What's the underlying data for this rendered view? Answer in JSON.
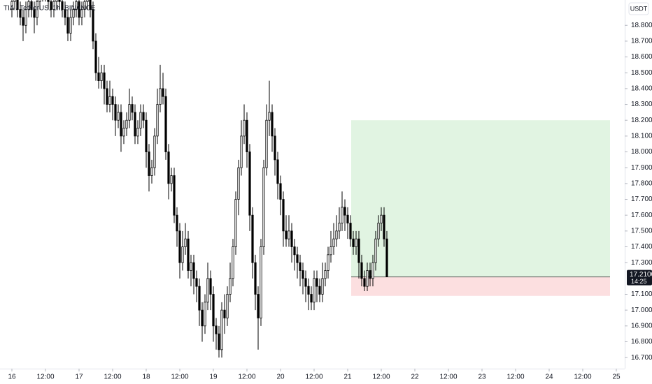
{
  "chart_data": {
    "type": "candlestick",
    "title": "TIA / TetherUS, 1h, BINANCE",
    "currency": "USDT",
    "open": [
      18.9,
      18.95,
      19.0,
      18.9,
      18.85,
      18.8,
      18.9,
      18.95,
      18.9,
      18.85,
      18.95,
      19.0,
      19.05,
      19.0,
      18.95,
      18.9,
      18.95,
      19.0,
      18.95,
      18.9,
      18.85,
      18.75,
      18.85,
      18.9,
      18.95,
      18.85,
      18.9,
      18.95,
      19.0,
      18.9,
      18.7,
      18.5,
      18.45,
      18.5,
      18.4,
      18.3,
      18.35,
      18.3,
      18.2,
      18.25,
      18.1,
      18.15,
      18.2,
      18.3,
      18.25,
      18.1,
      18.15,
      18.25,
      18.2,
      18.0,
      17.85,
      17.9,
      18.1,
      18.3,
      18.4,
      18.35,
      18.0,
      17.8,
      17.85,
      17.6,
      17.5,
      17.3,
      17.4,
      17.45,
      17.25,
      17.3,
      17.2,
      17.15,
      17.0,
      16.9,
      17.05,
      17.2,
      17.1,
      16.9,
      16.85,
      16.75,
      17.0,
      16.95,
      17.1,
      17.2,
      17.4,
      17.7,
      17.9,
      18.1,
      18.2,
      18.0,
      17.6,
      17.3,
      17.1,
      16.95,
      17.4,
      17.9,
      18.2,
      18.25,
      18.1,
      17.95,
      17.8,
      17.7,
      17.5,
      17.45,
      17.5,
      17.4,
      17.35,
      17.3,
      17.25,
      17.2,
      17.15,
      17.1,
      17.05,
      17.2,
      17.15,
      17.1,
      17.2,
      17.25,
      17.35,
      17.4,
      17.45,
      17.5,
      17.55,
      17.65,
      17.6,
      17.55,
      17.45,
      17.4,
      17.45,
      17.3,
      17.2,
      17.15,
      17.25,
      17.2,
      17.3,
      17.45,
      17.55,
      17.6,
      17.45
    ],
    "high": [
      19.0,
      19.05,
      19.05,
      18.95,
      18.9,
      18.95,
      19.0,
      19.0,
      18.95,
      19.0,
      19.05,
      19.1,
      19.1,
      19.05,
      19.0,
      19.0,
      19.05,
      19.05,
      19.0,
      18.95,
      18.9,
      18.9,
      18.95,
      19.0,
      19.0,
      18.95,
      19.0,
      19.05,
      19.05,
      18.95,
      18.75,
      18.6,
      18.55,
      18.55,
      18.45,
      18.45,
      18.4,
      18.35,
      18.3,
      18.3,
      18.2,
      18.25,
      18.4,
      18.35,
      18.3,
      18.2,
      18.3,
      18.3,
      18.25,
      18.05,
      17.95,
      18.15,
      18.4,
      18.55,
      18.5,
      18.4,
      18.05,
      17.9,
      17.9,
      17.65,
      17.55,
      17.5,
      17.55,
      17.5,
      17.35,
      17.35,
      17.25,
      17.2,
      17.05,
      17.1,
      17.3,
      17.25,
      17.15,
      16.95,
      16.9,
      17.05,
      17.1,
      17.15,
      17.3,
      17.45,
      17.75,
      17.95,
      18.2,
      18.3,
      18.25,
      18.05,
      17.65,
      17.35,
      17.15,
      17.45,
      17.95,
      18.3,
      18.45,
      18.3,
      18.15,
      18.0,
      17.85,
      17.75,
      17.6,
      17.6,
      17.55,
      17.45,
      17.4,
      17.35,
      17.3,
      17.25,
      17.2,
      17.15,
      17.25,
      17.25,
      17.2,
      17.3,
      17.3,
      17.4,
      17.5,
      17.55,
      17.6,
      17.65,
      17.75,
      17.7,
      17.65,
      17.6,
      17.5,
      17.5,
      17.5,
      17.35,
      17.25,
      17.3,
      17.3,
      17.35,
      17.5,
      17.6,
      17.65,
      17.65,
      17.5
    ],
    "low": [
      18.85,
      18.9,
      18.85,
      18.8,
      18.7,
      18.75,
      18.85,
      18.85,
      18.75,
      18.8,
      18.9,
      18.95,
      18.95,
      18.9,
      18.85,
      18.85,
      18.9,
      18.9,
      18.85,
      18.8,
      18.7,
      18.7,
      18.8,
      18.85,
      18.8,
      18.8,
      18.85,
      18.9,
      18.85,
      18.65,
      18.45,
      18.4,
      18.4,
      18.3,
      18.25,
      18.25,
      18.2,
      18.1,
      18.15,
      18.0,
      18.05,
      18.1,
      18.15,
      18.2,
      18.05,
      18.05,
      18.1,
      18.15,
      17.9,
      17.75,
      17.8,
      17.85,
      18.05,
      18.25,
      18.3,
      17.95,
      17.7,
      17.75,
      17.55,
      17.4,
      17.2,
      17.25,
      17.35,
      17.2,
      17.15,
      17.1,
      17.05,
      16.9,
      16.8,
      16.85,
      17.0,
      17.0,
      16.8,
      16.75,
      16.7,
      16.7,
      16.85,
      16.9,
      17.05,
      17.15,
      17.35,
      17.6,
      17.85,
      18.05,
      17.9,
      17.5,
      17.2,
      17.0,
      16.75,
      16.9,
      17.35,
      17.85,
      18.1,
      18.0,
      17.85,
      17.7,
      17.6,
      17.4,
      17.4,
      17.4,
      17.3,
      17.25,
      17.2,
      17.15,
      17.1,
      17.05,
      17.0,
      17.0,
      17.0,
      17.05,
      17.05,
      17.05,
      17.15,
      17.2,
      17.3,
      17.35,
      17.4,
      17.45,
      17.5,
      17.5,
      17.45,
      17.4,
      17.35,
      17.35,
      17.2,
      17.15,
      17.12,
      17.12,
      17.15,
      17.15,
      17.25,
      17.4,
      17.5,
      17.4,
      17.21
    ],
    "close": [
      18.95,
      19.0,
      18.9,
      18.85,
      18.8,
      18.9,
      18.95,
      18.9,
      18.85,
      18.95,
      19.0,
      19.05,
      19.0,
      18.95,
      18.9,
      18.95,
      19.0,
      18.95,
      18.9,
      18.85,
      18.75,
      18.85,
      18.9,
      18.95,
      18.85,
      18.9,
      18.95,
      19.0,
      18.9,
      18.7,
      18.5,
      18.45,
      18.5,
      18.4,
      18.3,
      18.35,
      18.3,
      18.2,
      18.25,
      18.1,
      18.15,
      18.2,
      18.3,
      18.25,
      18.1,
      18.15,
      18.25,
      18.2,
      18.0,
      17.85,
      17.9,
      18.1,
      18.3,
      18.4,
      18.35,
      18.0,
      17.8,
      17.85,
      17.6,
      17.5,
      17.3,
      17.4,
      17.45,
      17.25,
      17.3,
      17.2,
      17.15,
      17.0,
      16.9,
      17.05,
      17.2,
      17.1,
      16.9,
      16.85,
      16.75,
      17.0,
      16.95,
      17.1,
      17.2,
      17.4,
      17.7,
      17.9,
      18.1,
      18.2,
      18.0,
      17.6,
      17.3,
      17.1,
      16.95,
      17.4,
      17.9,
      18.2,
      18.25,
      18.1,
      17.95,
      17.8,
      17.7,
      17.5,
      17.45,
      17.5,
      17.4,
      17.35,
      17.3,
      17.25,
      17.2,
      17.15,
      17.1,
      17.05,
      17.2,
      17.15,
      17.1,
      17.2,
      17.25,
      17.35,
      17.4,
      17.45,
      17.5,
      17.55,
      17.65,
      17.6,
      17.55,
      17.45,
      17.4,
      17.45,
      17.3,
      17.2,
      17.15,
      17.25,
      17.2,
      17.3,
      17.45,
      17.55,
      17.6,
      17.45,
      17.21
    ],
    "up_color": "#ffffff",
    "down_color": "#000000",
    "edge_color": "#000000",
    "xlim": [
      -4.25,
      219
    ],
    "ylim": [
      16.63,
      18.96
    ],
    "xticks": [
      {
        "value": 0,
        "label": "16"
      },
      {
        "value": 12,
        "label": "12:00"
      },
      {
        "value": 24,
        "label": "17"
      },
      {
        "value": 36,
        "label": "12:00"
      },
      {
        "value": 48,
        "label": "18"
      },
      {
        "value": 60,
        "label": "12:00"
      },
      {
        "value": 72,
        "label": "19"
      },
      {
        "value": 84,
        "label": "12:00"
      },
      {
        "value": 96,
        "label": "20"
      },
      {
        "value": 108,
        "label": "12:00"
      },
      {
        "value": 120,
        "label": "21"
      },
      {
        "value": 132,
        "label": "12:00"
      },
      {
        "value": 144,
        "label": "22"
      },
      {
        "value": 156,
        "label": "12:00"
      },
      {
        "value": 168,
        "label": "23"
      },
      {
        "value": 180,
        "label": "12:00"
      },
      {
        "value": 192,
        "label": "24"
      },
      {
        "value": 204,
        "label": "12:00"
      },
      {
        "value": 216,
        "label": "25"
      }
    ],
    "yticks": [
      {
        "value": 16.7,
        "label": "16.7000"
      },
      {
        "value": 16.8,
        "label": "16.8000"
      },
      {
        "value": 16.9,
        "label": "16.9000"
      },
      {
        "value": 17.0,
        "label": "17.0000"
      },
      {
        "value": 17.1,
        "label": "17.1000"
      },
      {
        "value": 17.3,
        "label": "17.3000"
      },
      {
        "value": 17.4,
        "label": "17.4000"
      },
      {
        "value": 17.5,
        "label": "17.5000"
      },
      {
        "value": 17.6,
        "label": "17.6000"
      },
      {
        "value": 17.7,
        "label": "17.7000"
      },
      {
        "value": 17.8,
        "label": "17.8000"
      },
      {
        "value": 17.9,
        "label": "17.9000"
      },
      {
        "value": 18.0,
        "label": "18.0000"
      },
      {
        "value": 18.1,
        "label": "18.1000"
      },
      {
        "value": 18.2,
        "label": "18.2000"
      },
      {
        "value": 18.3,
        "label": "18.3000"
      },
      {
        "value": 18.4,
        "label": "18.4000"
      },
      {
        "value": 18.5,
        "label": "18.5000"
      },
      {
        "value": 18.6,
        "label": "18.6000"
      },
      {
        "value": 18.7,
        "label": "18.7000"
      },
      {
        "value": 18.8,
        "label": "18.8000"
      }
    ],
    "last_price": {
      "value": 17.21,
      "label": "17.2100"
    },
    "countdown": "14:25",
    "position": {
      "start": 121.25,
      "end": 213.75,
      "entry": 17.21,
      "target": 18.2,
      "stop": 17.09,
      "profit_color": "#e1f4e2",
      "loss_color": "#fcdfe0"
    }
  }
}
